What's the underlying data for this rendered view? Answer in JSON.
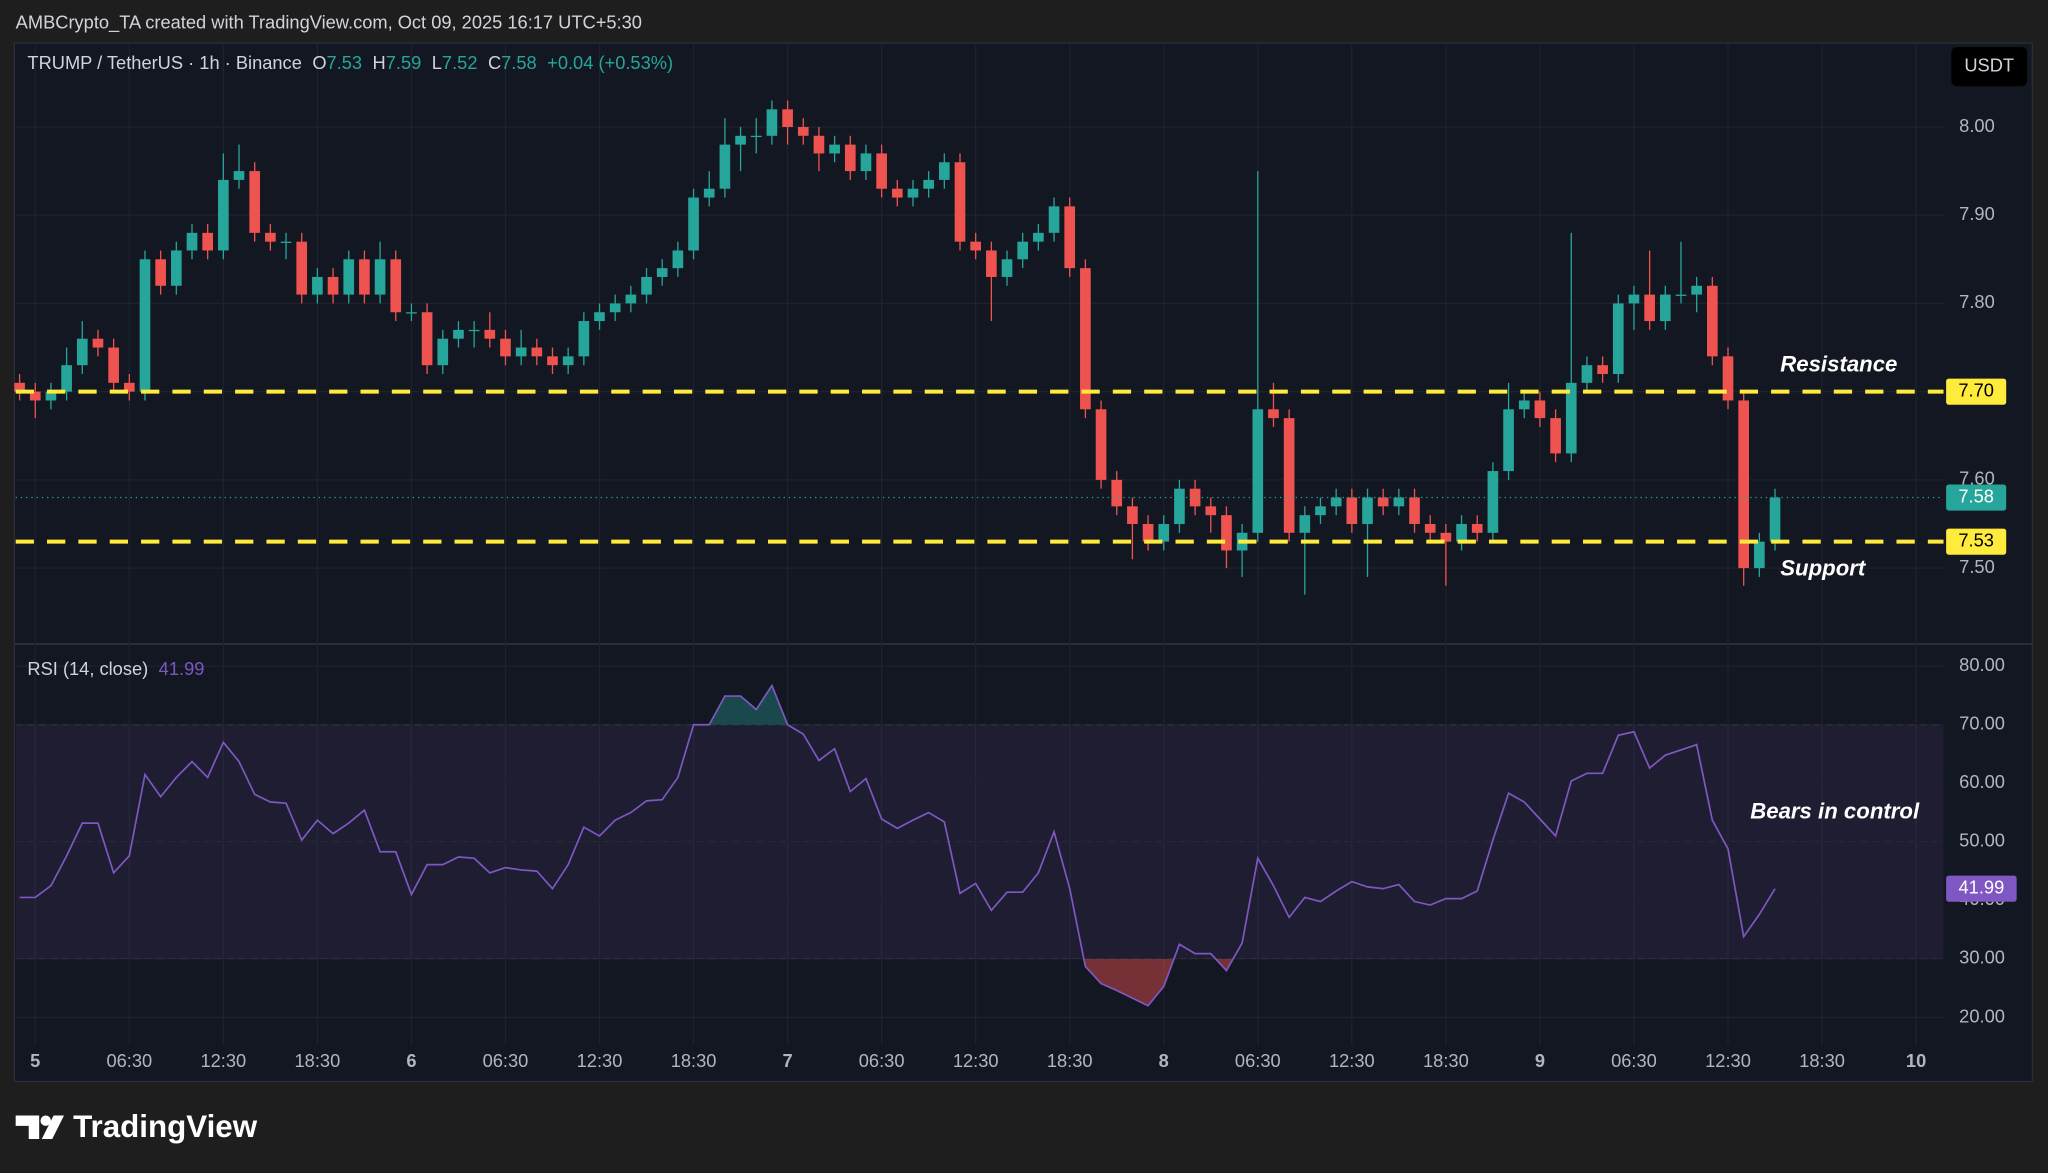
{
  "header": {
    "text": "AMBCrypto_TA created with TradingView.com, Oct 09, 2025 16:17 UTC+5:30"
  },
  "chart_data": [
    {
      "type": "candlestick",
      "symbol": "TRUMP / TetherUS · 1h · Binance",
      "legend_keys": {
        "open": "O",
        "high": "H",
        "low": "L",
        "close": "C"
      },
      "change": "+0.04 (+0.53%)",
      "currency": "USDT",
      "up_color": "#26a69a",
      "down_color": "#ef5350",
      "open": [
        7.71,
        7.7,
        7.69,
        7.7,
        7.73,
        7.76,
        7.75,
        7.71,
        7.7,
        7.85,
        7.82,
        7.86,
        7.88,
        7.86,
        7.94,
        7.95,
        7.88,
        7.87,
        7.87,
        7.81,
        7.83,
        7.81,
        7.85,
        7.81,
        7.85,
        7.79,
        7.79,
        7.73,
        7.76,
        7.77,
        7.77,
        7.76,
        7.74,
        7.75,
        7.74,
        7.73,
        7.74,
        7.78,
        7.79,
        7.8,
        7.81,
        7.83,
        7.84,
        7.86,
        7.92,
        7.93,
        7.98,
        7.99,
        7.99,
        8.02,
        8.0,
        7.99,
        7.97,
        7.98,
        7.95,
        7.97,
        7.93,
        7.92,
        7.93,
        7.94,
        7.96,
        7.87,
        7.86,
        7.83,
        7.85,
        7.87,
        7.88,
        7.91,
        7.84,
        7.68,
        7.6,
        7.57,
        7.55,
        7.53,
        7.55,
        7.59,
        7.57,
        7.56,
        7.52,
        7.54,
        7.68,
        7.67,
        7.54,
        7.56,
        7.57,
        7.58,
        7.55,
        7.58,
        7.57,
        7.58,
        7.55,
        7.54,
        7.53,
        7.55,
        7.54,
        7.61,
        7.68,
        7.69,
        7.67,
        7.63,
        7.71,
        7.73,
        7.72,
        7.8,
        7.81,
        7.78,
        7.81,
        7.81,
        7.82,
        7.74,
        7.69,
        7.5,
        7.53
      ],
      "high": [
        7.72,
        7.71,
        7.71,
        7.75,
        7.78,
        7.77,
        7.76,
        7.72,
        7.86,
        7.86,
        7.87,
        7.89,
        7.89,
        7.97,
        7.98,
        7.96,
        7.89,
        7.88,
        7.88,
        7.84,
        7.84,
        7.86,
        7.86,
        7.87,
        7.86,
        7.8,
        7.8,
        7.77,
        7.78,
        7.78,
        7.79,
        7.77,
        7.77,
        7.76,
        7.75,
        7.75,
        7.79,
        7.8,
        7.81,
        7.82,
        7.84,
        7.85,
        7.87,
        7.93,
        7.95,
        8.01,
        8.0,
        8.01,
        8.03,
        8.03,
        8.01,
        8.0,
        7.99,
        7.99,
        7.98,
        7.98,
        7.94,
        7.94,
        7.95,
        7.97,
        7.97,
        7.88,
        7.87,
        7.86,
        7.88,
        7.89,
        7.92,
        7.92,
        7.85,
        7.69,
        7.61,
        7.58,
        7.56,
        7.56,
        7.6,
        7.6,
        7.58,
        7.57,
        7.55,
        7.95,
        7.71,
        7.68,
        7.57,
        7.58,
        7.59,
        7.59,
        7.59,
        7.59,
        7.59,
        7.59,
        7.56,
        7.55,
        7.56,
        7.56,
        7.62,
        7.71,
        7.7,
        7.7,
        7.68,
        7.88,
        7.74,
        7.74,
        7.81,
        7.82,
        7.86,
        7.82,
        7.87,
        7.83,
        7.83,
        7.75,
        7.7,
        7.54,
        7.59
      ],
      "low": [
        7.69,
        7.67,
        7.68,
        7.69,
        7.72,
        7.74,
        7.7,
        7.69,
        7.69,
        7.81,
        7.81,
        7.85,
        7.85,
        7.85,
        7.93,
        7.87,
        7.86,
        7.85,
        7.8,
        7.8,
        7.8,
        7.8,
        7.8,
        7.8,
        7.78,
        7.78,
        7.72,
        7.72,
        7.75,
        7.75,
        7.75,
        7.73,
        7.73,
        7.73,
        7.72,
        7.72,
        7.73,
        7.77,
        7.78,
        7.79,
        7.8,
        7.82,
        7.83,
        7.85,
        7.91,
        7.92,
        7.95,
        7.97,
        7.98,
        7.98,
        7.98,
        7.95,
        7.96,
        7.94,
        7.94,
        7.92,
        7.91,
        7.91,
        7.92,
        7.93,
        7.86,
        7.85,
        7.78,
        7.82,
        7.84,
        7.86,
        7.87,
        7.83,
        7.67,
        7.59,
        7.56,
        7.51,
        7.52,
        7.52,
        7.54,
        7.56,
        7.54,
        7.5,
        7.49,
        7.53,
        7.66,
        7.53,
        7.47,
        7.55,
        7.56,
        7.54,
        7.49,
        7.56,
        7.56,
        7.54,
        7.53,
        7.48,
        7.52,
        7.53,
        7.53,
        7.6,
        7.67,
        7.66,
        7.62,
        7.62,
        7.7,
        7.71,
        7.71,
        7.77,
        7.77,
        7.77,
        7.8,
        7.79,
        7.73,
        7.68,
        7.48,
        7.49,
        7.52
      ],
      "close": [
        7.7,
        7.69,
        7.7,
        7.73,
        7.76,
        7.75,
        7.71,
        7.7,
        7.85,
        7.82,
        7.86,
        7.88,
        7.86,
        7.94,
        7.95,
        7.88,
        7.87,
        7.87,
        7.81,
        7.83,
        7.81,
        7.85,
        7.81,
        7.85,
        7.79,
        7.79,
        7.73,
        7.76,
        7.77,
        7.77,
        7.76,
        7.74,
        7.75,
        7.74,
        7.73,
        7.74,
        7.78,
        7.79,
        7.8,
        7.81,
        7.83,
        7.84,
        7.86,
        7.92,
        7.93,
        7.98,
        7.99,
        7.99,
        8.02,
        8.0,
        7.99,
        7.97,
        7.98,
        7.95,
        7.97,
        7.93,
        7.92,
        7.93,
        7.94,
        7.96,
        7.87,
        7.86,
        7.83,
        7.85,
        7.87,
        7.88,
        7.91,
        7.84,
        7.68,
        7.6,
        7.57,
        7.55,
        7.53,
        7.55,
        7.59,
        7.57,
        7.56,
        7.52,
        7.54,
        7.68,
        7.67,
        7.54,
        7.56,
        7.57,
        7.58,
        7.55,
        7.58,
        7.57,
        7.58,
        7.55,
        7.54,
        7.53,
        7.55,
        7.54,
        7.61,
        7.68,
        7.69,
        7.67,
        7.63,
        7.71,
        7.73,
        7.72,
        7.8,
        7.81,
        7.78,
        7.81,
        7.81,
        7.82,
        7.74,
        7.69,
        7.5,
        7.53,
        7.58
      ],
      "ylim": [
        7.414,
        8.095
      ],
      "yticks": [
        {
          "value": 7.5,
          "label": "7.50"
        },
        {
          "value": 7.6,
          "label": "7.60"
        },
        {
          "value": 7.7,
          "label": "7.70"
        },
        {
          "value": 7.8,
          "label": "7.80"
        },
        {
          "value": 7.9,
          "label": "7.90"
        },
        {
          "value": 8,
          "label": "8.00"
        }
      ],
      "xlim": [
        -0.25,
        122.75
      ],
      "xticks": [
        {
          "value": 1,
          "label": "5"
        },
        {
          "value": 7,
          "label": "06:30"
        },
        {
          "value": 13,
          "label": "12:30"
        },
        {
          "value": 19,
          "label": "18:30"
        },
        {
          "value": 25,
          "label": "6"
        },
        {
          "value": 31,
          "label": "06:30"
        },
        {
          "value": 37,
          "label": "12:30"
        },
        {
          "value": 43,
          "label": "18:30"
        },
        {
          "value": 49,
          "label": "7"
        },
        {
          "value": 55,
          "label": "06:30"
        },
        {
          "value": 61,
          "label": "12:30"
        },
        {
          "value": 67,
          "label": "18:30"
        },
        {
          "value": 73,
          "label": "8"
        },
        {
          "value": 79,
          "label": "06:30"
        },
        {
          "value": 85,
          "label": "12:30"
        },
        {
          "value": 91,
          "label": "18:30"
        },
        {
          "value": 97,
          "label": "9"
        },
        {
          "value": 103,
          "label": "06:30"
        },
        {
          "value": 109,
          "label": "12:30"
        },
        {
          "value": 115,
          "label": "18:30"
        },
        {
          "value": 121,
          "label": "10"
        }
      ],
      "levels": [
        {
          "name": "Resistance",
          "value": 7.7,
          "label": "7.70",
          "color": "#ffeb3b"
        },
        {
          "name": "Support",
          "value": 7.53,
          "label": "7.53",
          "color": "#ffeb3b"
        }
      ],
      "grid": true
    },
    {
      "type": "line",
      "title": "RSI (14, close)",
      "color": "#7e57c2",
      "values": [
        40.5,
        40.5,
        42.5,
        47.6,
        53.2,
        53.2,
        44.7,
        47.6,
        61.5,
        57.7,
        61,
        63.7,
        61,
        67,
        63.7,
        58.1,
        56.8,
        56.6,
        50.3,
        53.7,
        51.4,
        53.2,
        55.4,
        48.3,
        48.3,
        41,
        46.1,
        46.1,
        47.4,
        47.2,
        44.7,
        45.6,
        45.2,
        45,
        42,
        46.1,
        52.5,
        51,
        53.7,
        55,
        57,
        57.2,
        61,
        70,
        70,
        74.9,
        74.9,
        72.6,
        76.7,
        70,
        68.4,
        63.9,
        65.9,
        58.6,
        60.8,
        53.9,
        52.3,
        53.7,
        55,
        53.4,
        41.2,
        42.9,
        38.3,
        41.4,
        41.4,
        44.7,
        51.7,
        42,
        28.7,
        25.8,
        24.6,
        23.3,
        22,
        25.3,
        32.5,
        30.9,
        30.9,
        28,
        32.7,
        47.2,
        42.5,
        37.1,
        40.5,
        39.8,
        41.6,
        43.2,
        42.3,
        42,
        42.7,
        39.8,
        39.2,
        40.3,
        40.3,
        41.6,
        50.3,
        58.3,
        56.8,
        53.9,
        51,
        60.4,
        61.7,
        61.7,
        68.2,
        68.8,
        62.6,
        64.8,
        65.7,
        66.6,
        53.7,
        48.8,
        33.8,
        37.6,
        41.99
      ],
      "ylim": [
        15.3,
        83.8
      ],
      "yticks": [
        {
          "value": 20,
          "label": "20.00"
        },
        {
          "value": 30,
          "label": "30.00"
        },
        {
          "value": 40,
          "label": "40.00"
        },
        {
          "value": 50,
          "label": "50.00"
        },
        {
          "value": 60,
          "label": "60.00"
        },
        {
          "value": 70,
          "label": "70.00"
        },
        {
          "value": 80,
          "label": "80.00"
        }
      ],
      "xlim": [
        -0.25,
        122.75
      ],
      "band": [
        30,
        70
      ],
      "midline": 50,
      "annotation": "Bears in control"
    }
  ],
  "footer": {
    "brand": "TradingView"
  }
}
